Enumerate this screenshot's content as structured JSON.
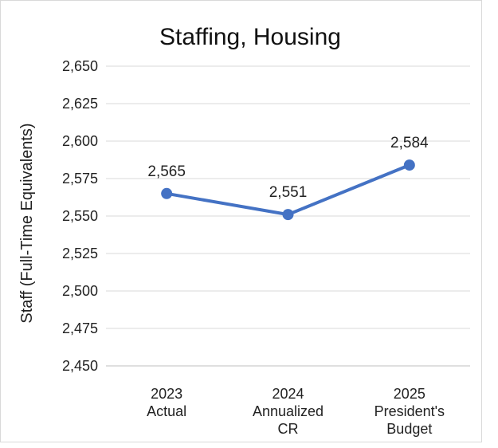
{
  "chart_data": {
    "type": "line",
    "title": "Staffing, Housing",
    "ylabel": "Staff (Full-Time Equivalents)",
    "xlabel": "",
    "categories": [
      [
        "2023",
        "Actual"
      ],
      [
        "2024",
        "Annualized",
        "CR"
      ],
      [
        "2025",
        "President's",
        "Budget"
      ]
    ],
    "series": [
      {
        "values": [
          2565,
          2551,
          2584
        ],
        "labels": [
          "2,565",
          "2,551",
          "2,584"
        ]
      }
    ],
    "ylim": [
      2450,
      2650
    ],
    "yticks": [
      2450,
      2475,
      2500,
      2525,
      2550,
      2575,
      2600,
      2625,
      2650
    ],
    "ytick_labels": [
      "2,450",
      "2,475",
      "2,500",
      "2,525",
      "2,550",
      "2,575",
      "2,600",
      "2,625",
      "2,650"
    ],
    "grid": true,
    "legend": "none",
    "colors": {
      "line": "#4472c4",
      "grid": "#d9d9d9",
      "axis": "#bfbfbf"
    }
  }
}
